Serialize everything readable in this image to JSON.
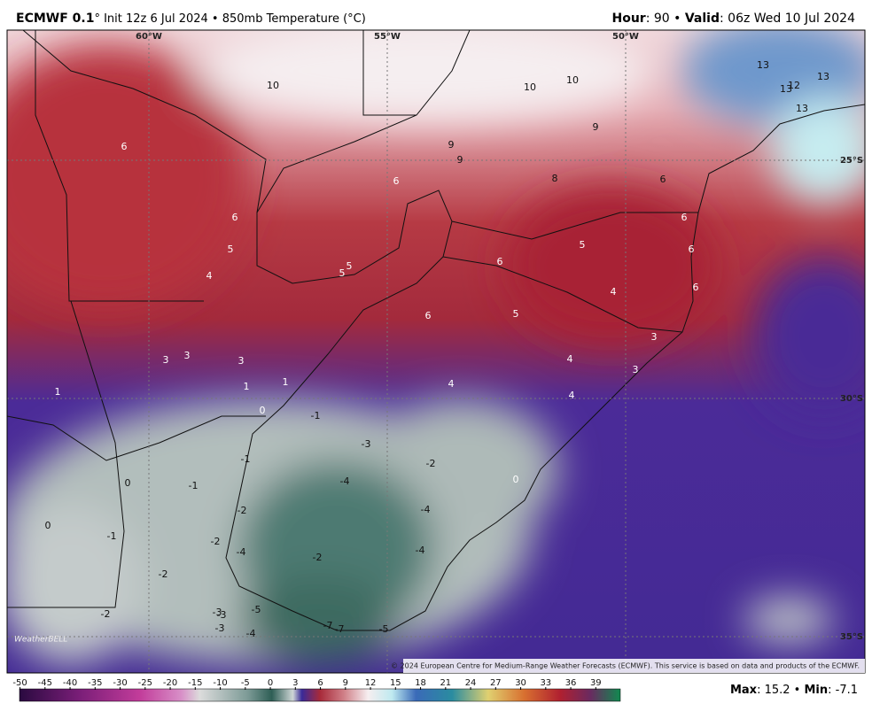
{
  "header": {
    "title_bold": "ECMWF 0.1",
    "title_rest": "° Init 12z 6 Jul 2024 • 850mb Temperature (°C)",
    "hour_label": "Hour",
    "hour_value": ": 90 • ",
    "valid_label": "Valid",
    "valid_value": ": 06z Wed 10 Jul 2024"
  },
  "map": {
    "lon_labels": [
      "60°W",
      "55°W",
      "50°W"
    ],
    "lat_labels": [
      "25°S",
      "30°S",
      "35°S"
    ],
    "contour_labels": [
      10,
      10,
      10,
      9,
      9,
      9,
      8,
      6,
      13,
      13,
      12,
      13,
      13,
      6,
      6,
      6,
      5,
      5,
      5,
      4,
      6,
      5,
      6,
      6,
      6,
      4,
      6,
      5,
      3,
      3,
      3,
      3,
      1,
      1,
      1,
      0,
      4,
      4,
      3,
      4,
      0,
      -1,
      -1,
      -3,
      -2,
      -4,
      -4,
      -2,
      -4,
      -2,
      -2,
      -4,
      -5,
      -7,
      -7,
      -5,
      -3,
      -3,
      -3,
      -4,
      -2,
      -2,
      -1,
      -1,
      0,
      0
    ],
    "logo": "WeatherBELL",
    "copyright": "© 2024 European Centre for Medium-Range Weather Forecasts (ECMWF). This service is based on data and products of the ECMWF."
  },
  "colorbar": {
    "ticks": [
      -50,
      -45,
      -40,
      -35,
      -30,
      -25,
      -20,
      -15,
      -10,
      -5,
      0,
      3,
      6,
      9,
      12,
      15,
      18,
      21,
      24,
      27,
      30,
      33,
      36,
      39
    ]
  },
  "footer": {
    "max_label": "Max",
    "max_value": ": 15.2 • ",
    "min_label": "Min",
    "min_value": ": -7.1"
  }
}
